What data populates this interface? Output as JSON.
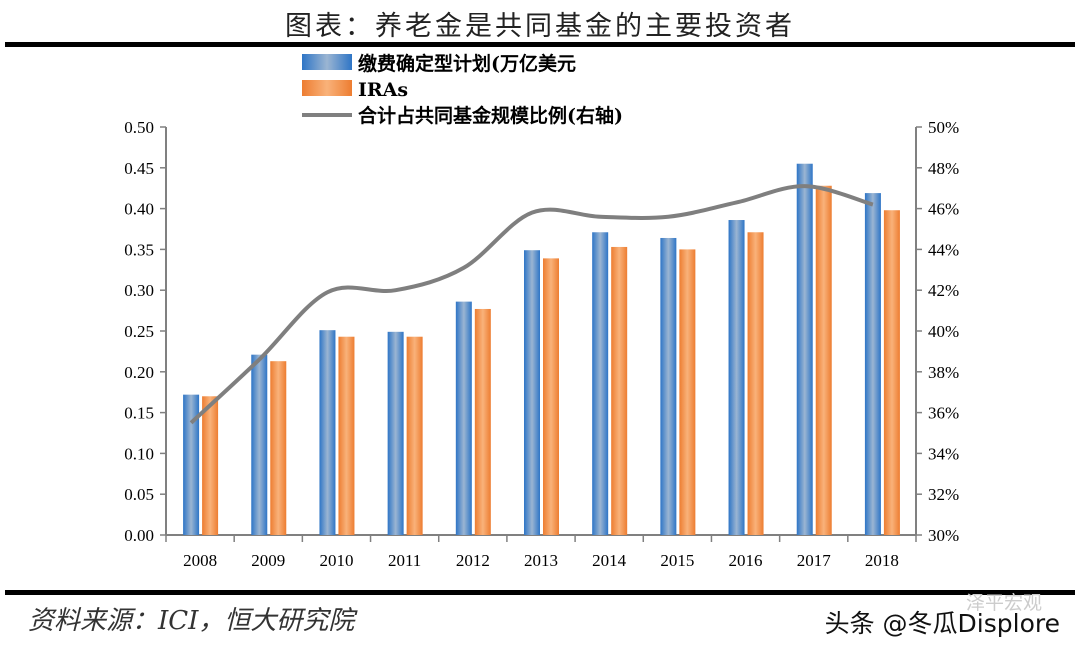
{
  "title": "图表：养老金是共同基金的主要投资者",
  "source": "资料来源：ICI，恒大研究院",
  "watermark": "头条 @冬瓜Displore",
  "watermark_secondary": "泽平宏观",
  "chart_data": {
    "type": "bar",
    "categories": [
      "2008",
      "2009",
      "2010",
      "2011",
      "2012",
      "2013",
      "2014",
      "2015",
      "2016",
      "2017",
      "2018"
    ],
    "series": [
      {
        "name": "缴费确定型计划(万亿美元",
        "type": "bar",
        "axis": "left",
        "color": "#2e75c6",
        "values": [
          0.172,
          0.221,
          0.251,
          0.249,
          0.286,
          0.349,
          0.371,
          0.364,
          0.386,
          0.455,
          0.419
        ]
      },
      {
        "name": "IRAs",
        "type": "bar",
        "axis": "left",
        "color": "#ed7d31",
        "values": [
          0.17,
          0.213,
          0.243,
          0.243,
          0.277,
          0.339,
          0.353,
          0.35,
          0.371,
          0.428,
          0.398
        ]
      },
      {
        "name": "合计占共同基金规模比例(右轴)",
        "type": "line",
        "axis": "right",
        "color": "#7f7f7f",
        "values": [
          35.5,
          38.6,
          41.9,
          42.0,
          43.1,
          45.8,
          45.6,
          45.6,
          46.3,
          47.1,
          46.2
        ]
      }
    ],
    "ylim": [
      0,
      0.5
    ],
    "yticks": [
      "0.00",
      "0.05",
      "0.10",
      "0.15",
      "0.20",
      "0.25",
      "0.30",
      "0.35",
      "0.40",
      "0.45",
      "0.50"
    ],
    "y2lim": [
      30,
      50
    ],
    "y2ticks": [
      "30%",
      "32%",
      "34%",
      "36%",
      "38%",
      "40%",
      "42%",
      "44%",
      "46%",
      "48%",
      "50%"
    ],
    "grid": false,
    "legend_position": "top"
  }
}
